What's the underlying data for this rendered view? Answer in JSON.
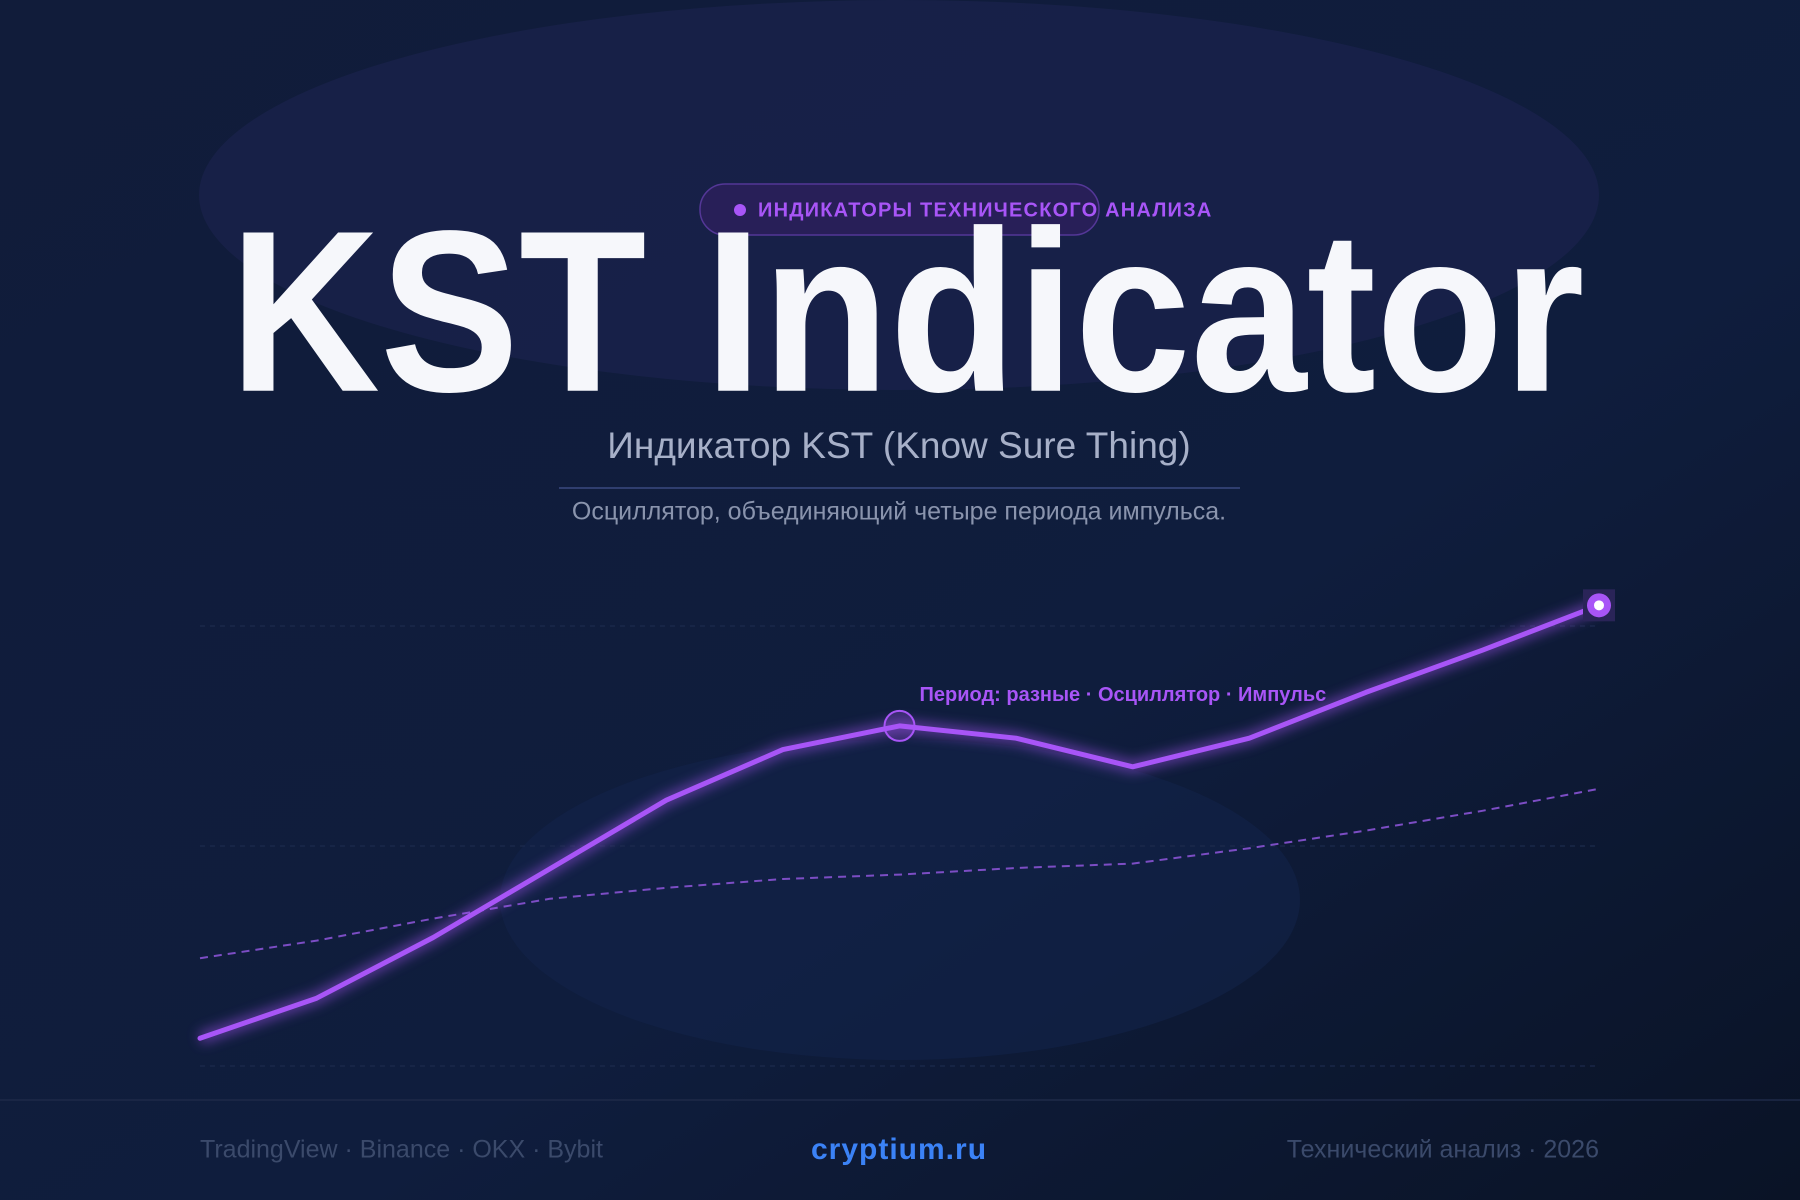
{
  "header": {
    "tag": "ИНДИКАТОРЫ ТЕХНИЧЕСКОГО АНАЛИЗА",
    "title": "KST Indicator",
    "subtitle": "Индикатор KST (Know Sure Thing)",
    "description": "Осциллятор, объединяющий четыре периода импульса."
  },
  "chart_data": {
    "type": "line",
    "categories": [
      null,
      null,
      null,
      null,
      null,
      null,
      null,
      null,
      null,
      null,
      null,
      null,
      null
    ],
    "series": [
      {
        "color": "#a855f7",
        "values": [
          6.3,
          15.4,
          29.2,
          44.8,
          60.4,
          71.9,
          77.3,
          74.5,
          68.0,
          74.5,
          84.9,
          94.5,
          104.7
        ]
      },
      {
        "color": "#7c4dc4",
        "values": [
          24.5,
          28.5,
          33.5,
          38,
          40.5,
          42.5,
          43.5,
          45,
          46,
          49.5,
          53.5,
          58,
          63
        ]
      }
    ],
    "annotation": "Период: разные · Осциллятор · Импульс",
    "ylim": [
      0,
      100
    ],
    "yticks": [
      0,
      50,
      100
    ],
    "grid": true
  },
  "footer": {
    "left": "TradingView · Binance · OKX · Bybit",
    "brand": "cryptium.ru",
    "right": "Технический анализ · 2026"
  }
}
